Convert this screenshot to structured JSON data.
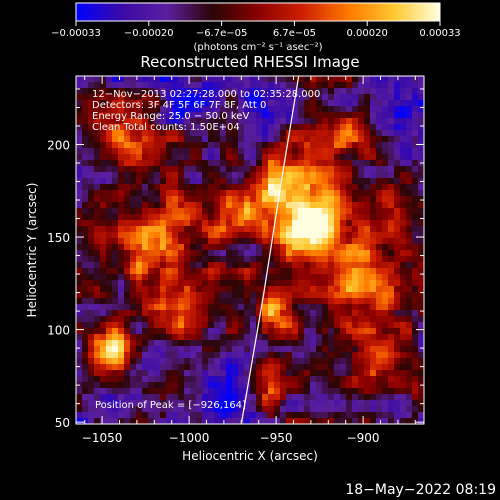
{
  "chart_data": {
    "type": "heatmap",
    "title": "Reconstructed RHESSI Image",
    "xlabel": "Heliocentric X (arcsec)",
    "ylabel": "Heliocentric Y (arcsec)",
    "xlim": [
      -1065,
      -865
    ],
    "ylim": [
      49,
      237
    ],
    "xticks": [
      -1050,
      -1000,
      -950,
      -900
    ],
    "xtick_labels": [
      "−1050",
      "−1000",
      "−950",
      "−900"
    ],
    "yticks": [
      50,
      100,
      150,
      200
    ],
    "ytick_labels": [
      "50",
      "100",
      "150",
      "200"
    ],
    "colorbar": {
      "range": [
        -0.00033,
        0.00033
      ],
      "tick_labels": [
        "−0.00033",
        "−0.00020",
        "−6.7e−05",
        "6.7e−05",
        "0.00020",
        "0.00033"
      ],
      "units_label": "(photons cm⁻² s⁻¹ asec⁻²)",
      "colormap": [
        "#0000ff",
        "#3a0aa8",
        "#5a1f9e",
        "#2a0505",
        "#8a0000",
        "#d02000",
        "#ff7a00",
        "#ffc830",
        "#ffffe0"
      ]
    },
    "annotations": [
      "12−Nov−2013 02:27:28.000 to 02:35:28.000",
      "Detectors: 3F 4F 5F 6F 7F 8F, Att 0",
      "Energy Range: 25.0 − 50.0 keV",
      "Clean      Total counts: 1.50E+04"
    ],
    "peak_label": "Position of Peak = [−926,164]",
    "peak_position": [
      -926,
      164
    ],
    "limb_curve_x": [
      [
        49,
        -970
      ],
      [
        120,
        -957
      ],
      [
        180,
        -947
      ],
      [
        237,
        -937
      ]
    ],
    "hotspots": [
      {
        "x": -1032,
        "y": 200,
        "i": 0.8,
        "r": 18
      },
      {
        "x": -1020,
        "y": 150,
        "i": 0.75,
        "r": 22
      },
      {
        "x": -1045,
        "y": 90,
        "i": 0.9,
        "r": 14
      },
      {
        "x": -1005,
        "y": 115,
        "i": 0.6,
        "r": 18
      },
      {
        "x": -945,
        "y": 180,
        "i": 0.85,
        "r": 18
      },
      {
        "x": -930,
        "y": 155,
        "i": 1.0,
        "r": 24
      },
      {
        "x": -915,
        "y": 205,
        "i": 0.55,
        "r": 14
      },
      {
        "x": -900,
        "y": 125,
        "i": 0.8,
        "r": 20
      },
      {
        "x": -880,
        "y": 165,
        "i": 0.6,
        "r": 14
      },
      {
        "x": -950,
        "y": 110,
        "i": 0.6,
        "r": 16
      },
      {
        "x": -975,
        "y": 160,
        "i": 0.55,
        "r": 16
      },
      {
        "x": -955,
        "y": 70,
        "i": 0.45,
        "r": 14
      },
      {
        "x": -890,
        "y": 80,
        "i": 0.5,
        "r": 14
      }
    ],
    "coldspots": [
      {
        "x": -1000,
        "y": 225,
        "i": 0.6,
        "r": 18
      },
      {
        "x": -960,
        "y": 225,
        "i": 0.5,
        "r": 14
      },
      {
        "x": -1050,
        "y": 65,
        "i": 0.4,
        "r": 14
      },
      {
        "x": -975,
        "y": 60,
        "i": 0.55,
        "r": 16
      },
      {
        "x": -880,
        "y": 215,
        "i": 0.6,
        "r": 14
      }
    ]
  },
  "footer": {
    "timestamp": "18−May−2022 08:19"
  }
}
